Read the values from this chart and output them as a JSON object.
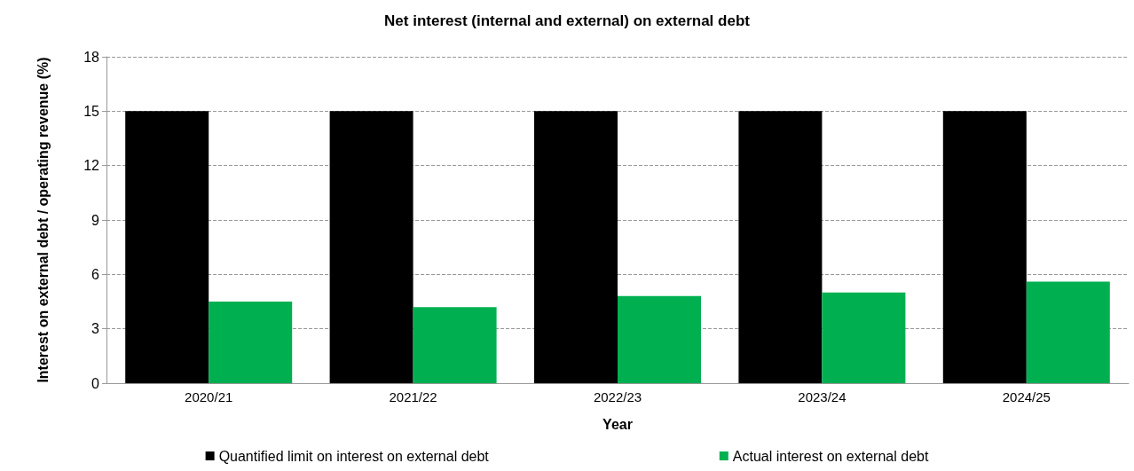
{
  "chart_data": {
    "type": "bar",
    "title": "Net interest (internal and external) on external debt",
    "xlabel": "Year",
    "ylabel": "Interest on external debt / operating revenue (%)",
    "categories": [
      "2020/21",
      "2021/22",
      "2022/23",
      "2023/24",
      "2024/25"
    ],
    "series": [
      {
        "name": "Quantified limit on interest on external debt",
        "color": "#000000",
        "values": [
          15,
          15,
          15,
          15,
          15
        ]
      },
      {
        "name": "Actual interest on external debt",
        "color": "#00b050",
        "values": [
          4.5,
          4.2,
          4.8,
          5.0,
          5.6
        ]
      }
    ],
    "ylim": [
      0,
      18
    ],
    "yticks": [
      0,
      3,
      6,
      9,
      12,
      15,
      18
    ],
    "grid": "y",
    "legend": "bottom"
  }
}
